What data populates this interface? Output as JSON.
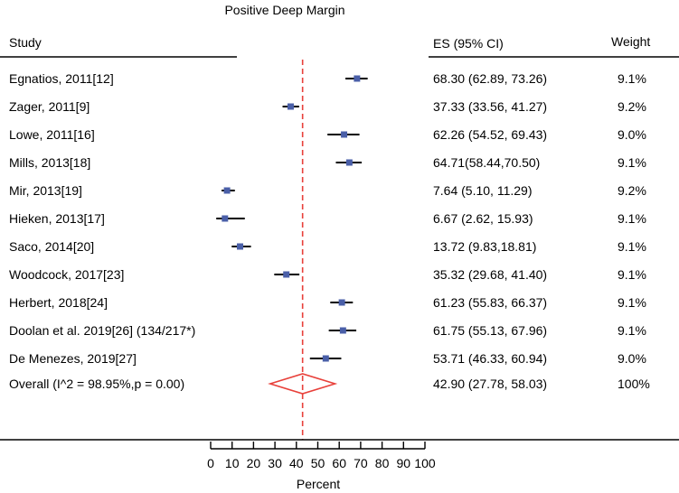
{
  "chart_data": {
    "type": "forest",
    "title": "Positive Deep Margin",
    "column_headers": {
      "study": "Study",
      "es": "ES (95% CI)",
      "weight": "Weight"
    },
    "studies": [
      {
        "label": "Egnatios, 2011[12]",
        "es": 68.3,
        "lo": 62.89,
        "hi": 73.26,
        "es_text": "68.30 (62.89, 73.26)",
        "weight": "9.1%"
      },
      {
        "label": "Zager, 2011[9]",
        "es": 37.33,
        "lo": 33.56,
        "hi": 41.27,
        "es_text": "37.33 (33.56, 41.27)",
        "weight": "9.2%"
      },
      {
        "label": "Lowe, 2011[16]",
        "es": 62.26,
        "lo": 54.52,
        "hi": 69.43,
        "es_text": "62.26 (54.52, 69.43)",
        "weight": "9.0%"
      },
      {
        "label": "Mills, 2013[18]",
        "es": 64.71,
        "lo": 58.44,
        "hi": 70.5,
        "es_text": "64.71(58.44,70.50)",
        "weight": "9.1%"
      },
      {
        "label": "Mir, 2013[19]",
        "es": 7.64,
        "lo": 5.1,
        "hi": 11.29,
        "es_text": "7.64 (5.10, 11.29)",
        "weight": "9.2%"
      },
      {
        "label": "Hieken, 2013[17]",
        "es": 6.67,
        "lo": 2.62,
        "hi": 15.93,
        "es_text": "6.67 (2.62, 15.93)",
        "weight": "9.1%"
      },
      {
        "label": "Saco, 2014[20]",
        "es": 13.72,
        "lo": 9.83,
        "hi": 18.81,
        "es_text": "13.72 (9.83,18.81)",
        "weight": "9.1%"
      },
      {
        "label": "Woodcock, 2017[23]",
        "es": 35.32,
        "lo": 29.68,
        "hi": 41.4,
        "es_text": "35.32 (29.68, 41.40)",
        "weight": "9.1%"
      },
      {
        "label": "Herbert, 2018[24]",
        "es": 61.23,
        "lo": 55.83,
        "hi": 66.37,
        "es_text": "61.23 (55.83, 66.37)",
        "weight": "9.1%"
      },
      {
        "label": "Doolan et al. 2019[26] (134/217*)",
        "es": 61.75,
        "lo": 55.13,
        "hi": 67.96,
        "es_text": "61.75 (55.13, 67.96)",
        "weight": "9.1%"
      },
      {
        "label": "De Menezes, 2019[27]",
        "es": 53.71,
        "lo": 46.33,
        "hi": 60.94,
        "es_text": "53.71 (46.33, 60.94)",
        "weight": "9.0%"
      }
    ],
    "overall": {
      "label": "Overall (I^2 = 98.95%,p = 0.00)",
      "es": 42.9,
      "lo": 27.78,
      "hi": 58.03,
      "es_text": "42.90 (27.78, 58.03)",
      "weight": "100%"
    },
    "reference_line": 42.9,
    "x_ticks": [
      0,
      10,
      20,
      30,
      40,
      50,
      60,
      70,
      80,
      90,
      100
    ],
    "xlim": [
      0,
      100
    ],
    "xlabel": "Percent",
    "colors": {
      "marker": "#4a5fa8",
      "ci": "#000000",
      "reference": "#e8403a",
      "diamond": "#e8403a"
    }
  }
}
